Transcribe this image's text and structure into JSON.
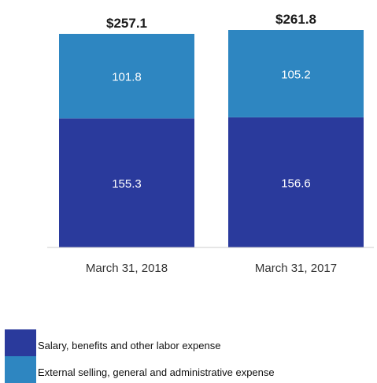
{
  "chart_data": {
    "type": "bar",
    "stacked": true,
    "categories": [
      "March 31, 2018",
      "March 31, 2017"
    ],
    "series": [
      {
        "name": "Salary, benefits and other labor expense",
        "values": [
          155.3,
          156.6
        ],
        "color": "#2a3a9c"
      },
      {
        "name": "External selling, general and administrative expense",
        "values": [
          101.8,
          105.2
        ],
        "color": "#2e86c1"
      }
    ],
    "totals": [
      "$257.1",
      "$261.8"
    ],
    "data_labels": [
      [
        "155.3",
        "156.6"
      ],
      [
        "101.8",
        "105.2"
      ]
    ],
    "title": "",
    "xlabel": "",
    "ylabel": "",
    "ylim": [
      0,
      261.8
    ],
    "grid": false,
    "legend_position": "bottom-left"
  }
}
